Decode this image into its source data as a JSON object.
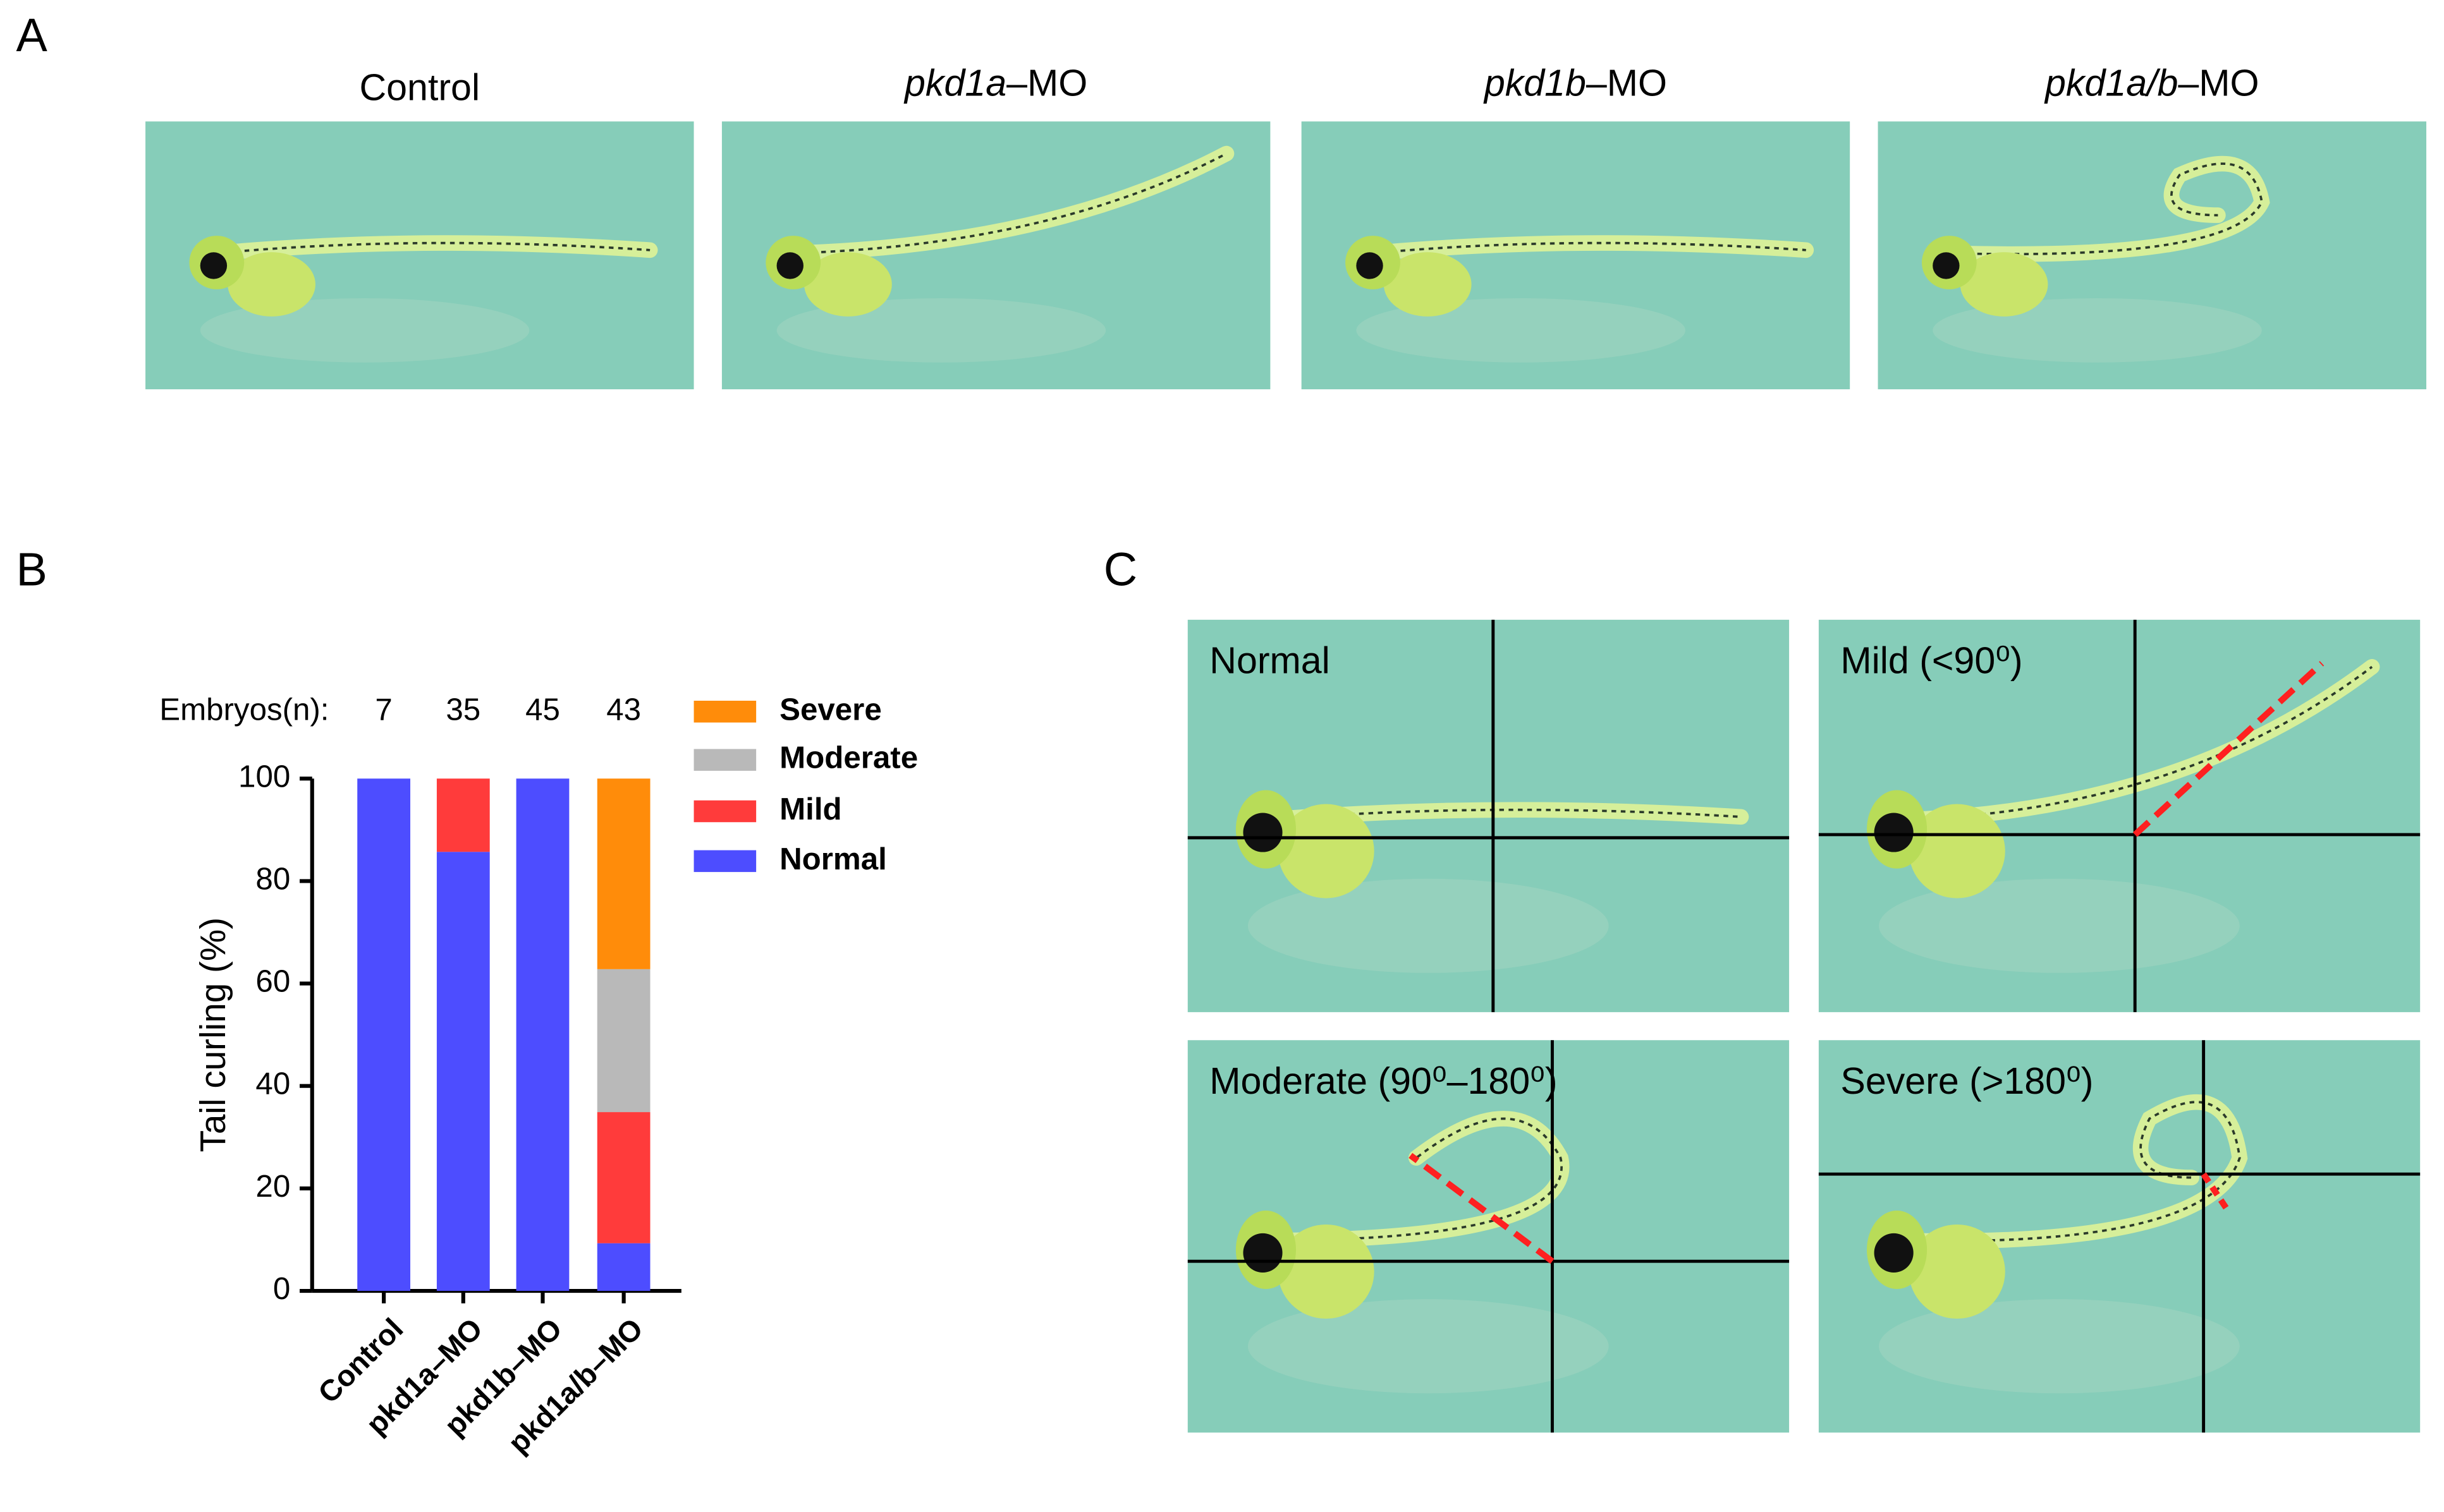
{
  "panel_labels": [
    "A",
    "B",
    "C"
  ],
  "panel_a": {
    "images": [
      {
        "title": "Control"
      },
      {
        "gene": "pkd1a",
        "suffix": "–MO"
      },
      {
        "gene": "pkd1b",
        "suffix": "–MO"
      },
      {
        "gene": "pkd1a/b",
        "suffix": "–MO"
      }
    ]
  },
  "chart_data": {
    "type": "stacked-bar",
    "categories": [
      "Control",
      "pkd1a–MO",
      "pkd1b–MO",
      "pkd1a/b–MO"
    ],
    "series": [
      {
        "name": "Normal",
        "color": "#4d4dff",
        "values": [
          100,
          85.7,
          100,
          9.3
        ]
      },
      {
        "name": "Mild",
        "color": "#ff3b3b",
        "values": [
          0,
          14.3,
          0,
          25.6
        ]
      },
      {
        "name": "Moderate",
        "color": "#b9b9b9",
        "values": [
          0,
          0,
          0,
          27.9
        ]
      },
      {
        "name": "Severe",
        "color": "#ff8c0a",
        "values": [
          0,
          0,
          0,
          37.2
        ]
      }
    ],
    "ylabel": "Tail curling (%)",
    "ylim": [
      0,
      100
    ],
    "yticks": [
      0,
      20,
      40,
      60,
      80,
      100
    ],
    "annotation": "Embryos(n):",
    "embryo_counts": [
      7,
      35,
      45,
      43
    ],
    "legend": "right"
  },
  "panel_c": {
    "images": [
      {
        "label": "Normal"
      },
      {
        "label": "Mild (<90⁰)"
      },
      {
        "label": "Moderate (90⁰–180⁰)"
      },
      {
        "label": "Severe (>180⁰)"
      }
    ]
  }
}
